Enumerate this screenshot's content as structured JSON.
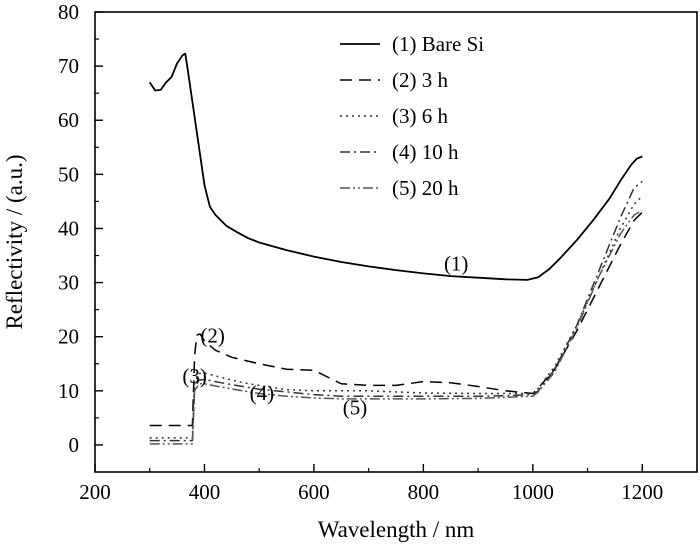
{
  "chart_data": {
    "type": "line",
    "xlabel": "Wavelength / nm",
    "ylabel": "Reflectivity / (a.u.)",
    "xlim": [
      200,
      1300
    ],
    "ylim": [
      -5,
      80
    ],
    "xticks": [
      200,
      400,
      600,
      800,
      1000,
      1200
    ],
    "yticks": [
      0,
      10,
      20,
      30,
      40,
      50,
      60,
      70,
      80
    ],
    "legend_position": "top-right",
    "series": [
      {
        "name": "(1) Bare Si",
        "style": "solid",
        "color": "#000000",
        "points": [
          [
            300,
            67
          ],
          [
            310,
            65.5
          ],
          [
            320,
            65.6
          ],
          [
            330,
            67
          ],
          [
            340,
            68
          ],
          [
            350,
            70.5
          ],
          [
            360,
            72
          ],
          [
            365,
            72.3
          ],
          [
            370,
            69
          ],
          [
            380,
            62
          ],
          [
            390,
            55
          ],
          [
            400,
            48
          ],
          [
            410,
            44
          ],
          [
            420,
            42.5
          ],
          [
            440,
            40.5
          ],
          [
            460,
            39.3
          ],
          [
            480,
            38.2
          ],
          [
            500,
            37.4
          ],
          [
            550,
            36
          ],
          [
            600,
            34.8
          ],
          [
            650,
            33.8
          ],
          [
            700,
            33
          ],
          [
            750,
            32.3
          ],
          [
            800,
            31.7
          ],
          [
            850,
            31.2
          ],
          [
            900,
            30.9
          ],
          [
            950,
            30.6
          ],
          [
            990,
            30.5
          ],
          [
            1010,
            31
          ],
          [
            1030,
            32.5
          ],
          [
            1050,
            34.5
          ],
          [
            1080,
            37.8
          ],
          [
            1110,
            41.5
          ],
          [
            1140,
            45.5
          ],
          [
            1160,
            48.8
          ],
          [
            1180,
            51.8
          ],
          [
            1190,
            52.9
          ],
          [
            1200,
            53.3
          ]
        ]
      },
      {
        "name": "(2) 3 h",
        "style": "dash",
        "color": "#000000",
        "points": [
          [
            300,
            3.6
          ],
          [
            370,
            3.6
          ],
          [
            378,
            3.6
          ],
          [
            382,
            16.5
          ],
          [
            386,
            20.3
          ],
          [
            392,
            20.5
          ],
          [
            400,
            19.2
          ],
          [
            420,
            17.5
          ],
          [
            450,
            16.2
          ],
          [
            500,
            15
          ],
          [
            550,
            14
          ],
          [
            600,
            13.8
          ],
          [
            650,
            11.3
          ],
          [
            700,
            11
          ],
          [
            750,
            11
          ],
          [
            800,
            11.7
          ],
          [
            850,
            11.5
          ],
          [
            900,
            10.8
          ],
          [
            950,
            10
          ],
          [
            1000,
            9.5
          ],
          [
            1010,
            10.5
          ],
          [
            1040,
            14
          ],
          [
            1080,
            21
          ],
          [
            1120,
            29
          ],
          [
            1160,
            37
          ],
          [
            1185,
            41.5
          ],
          [
            1200,
            43
          ]
        ]
      },
      {
        "name": "(3) 6 h",
        "style": "dot",
        "color": "#333333",
        "points": [
          [
            300,
            1.3
          ],
          [
            378,
            1.3
          ],
          [
            382,
            11.5
          ],
          [
            390,
            13.2
          ],
          [
            400,
            13.3
          ],
          [
            430,
            12.5
          ],
          [
            470,
            11.5
          ],
          [
            500,
            11
          ],
          [
            550,
            10.2
          ],
          [
            600,
            10
          ],
          [
            650,
            10
          ],
          [
            700,
            10
          ],
          [
            800,
            9.6
          ],
          [
            900,
            9.5
          ],
          [
            950,
            9.5
          ],
          [
            1000,
            9.5
          ],
          [
            1010,
            10.5
          ],
          [
            1040,
            14.5
          ],
          [
            1080,
            22
          ],
          [
            1120,
            31
          ],
          [
            1160,
            40
          ],
          [
            1185,
            44.5
          ],
          [
            1200,
            46
          ]
        ]
      },
      {
        "name": "(4) 10 h",
        "style": "dashdot",
        "color": "#333333",
        "points": [
          [
            300,
            0.8
          ],
          [
            378,
            0.8
          ],
          [
            382,
            10.5
          ],
          [
            390,
            12
          ],
          [
            400,
            12.1
          ],
          [
            430,
            11.5
          ],
          [
            470,
            10.8
          ],
          [
            500,
            10.3
          ],
          [
            550,
            9.8
          ],
          [
            600,
            9.3
          ],
          [
            650,
            9
          ],
          [
            700,
            9
          ],
          [
            800,
            9
          ],
          [
            900,
            9
          ],
          [
            950,
            9.1
          ],
          [
            1000,
            9.3
          ],
          [
            1010,
            10
          ],
          [
            1040,
            14
          ],
          [
            1080,
            22
          ],
          [
            1120,
            32
          ],
          [
            1160,
            42
          ],
          [
            1185,
            47.5
          ],
          [
            1200,
            48.7
          ]
        ]
      },
      {
        "name": "(5) 20 h",
        "style": "dashdotdot",
        "color": "#555555",
        "points": [
          [
            300,
            0.2
          ],
          [
            378,
            0.2
          ],
          [
            382,
            10
          ],
          [
            390,
            11.3
          ],
          [
            400,
            11.3
          ],
          [
            430,
            10.7
          ],
          [
            470,
            10
          ],
          [
            500,
            9.5
          ],
          [
            550,
            9
          ],
          [
            600,
            8.7
          ],
          [
            650,
            8.5
          ],
          [
            700,
            8.5
          ],
          [
            800,
            8.5
          ],
          [
            900,
            8.6
          ],
          [
            950,
            8.8
          ],
          [
            1000,
            9
          ],
          [
            1010,
            9.8
          ],
          [
            1040,
            13.5
          ],
          [
            1080,
            21.5
          ],
          [
            1120,
            31
          ],
          [
            1160,
            39
          ],
          [
            1185,
            42.5
          ],
          [
            1200,
            43.3
          ]
        ]
      }
    ],
    "annotations": [
      {
        "text": "(1)",
        "x": 860,
        "y": 33.5
      },
      {
        "text": "(2)",
        "x": 415,
        "y": 20.2
      },
      {
        "text": "(3)",
        "x": 382,
        "y": 12.7
      },
      {
        "text": "(4)",
        "x": 505,
        "y": 9.6
      },
      {
        "text": "(5)",
        "x": 675,
        "y": 6.9
      }
    ]
  }
}
